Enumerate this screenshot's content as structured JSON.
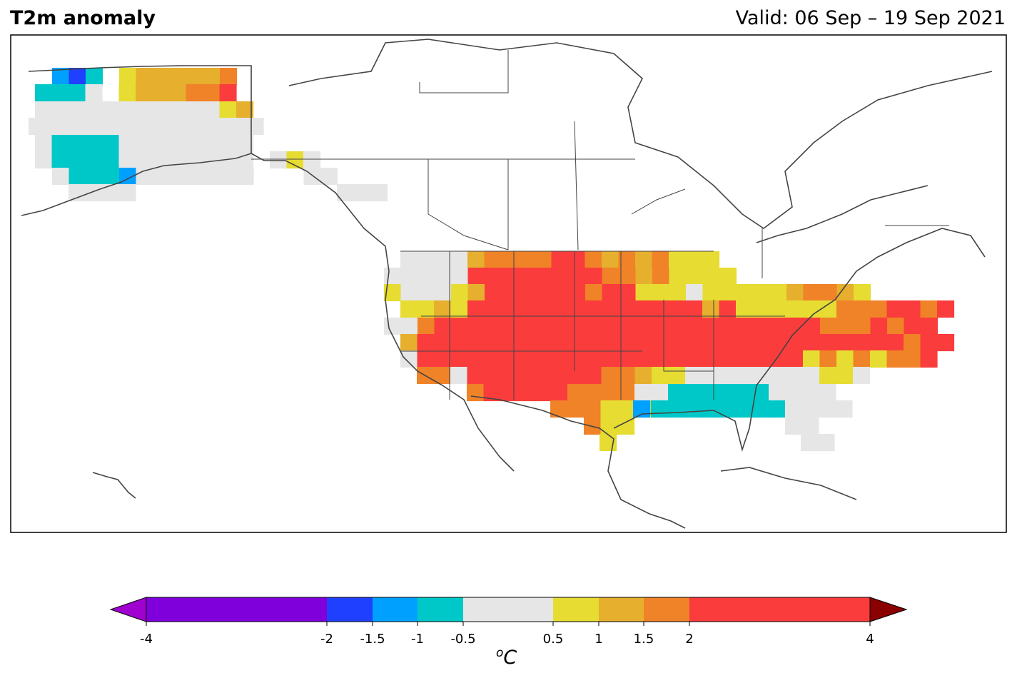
{
  "header": {
    "title": "T2m anomaly",
    "valid": "Valid: 06 Sep – 19 Sep 2021"
  },
  "colorbar": {
    "unit_base": "C",
    "unit_sup": "o",
    "ticks": [
      "-4",
      "-2",
      "-1.5",
      "-1",
      "-0.5",
      "0.5",
      "1",
      "1.5",
      "2",
      "4"
    ],
    "colors": {
      "below_min": "#a000d0",
      "lt_-2": "#8000dc",
      "-2_-1.5": "#2040ff",
      "-1.5_-1": "#00a0ff",
      "-1_-0.5": "#00c8c8",
      "-0.5_0.5": "#e6e6e6",
      "0.5_1": "#e6dc32",
      "1_1.5": "#e6af2d",
      "1.5_2": "#f08228",
      "2_4": "#fa3c3c",
      "above_max": "#8b0000"
    }
  },
  "map": {
    "projection": "Lambert Conformal (North America)",
    "coastline_color": "#444444",
    "anomaly_legend": {
      "g": "-0.5 to 0.5",
      "y": "0.5 to 1",
      "o": "1 to 1.5",
      "O": "1.5 to 2",
      "r": "2 to 4",
      "c": "-1 to -0.5",
      "b": "-1.5 to -1",
      "B": "-2 to -1.5"
    }
  }
}
